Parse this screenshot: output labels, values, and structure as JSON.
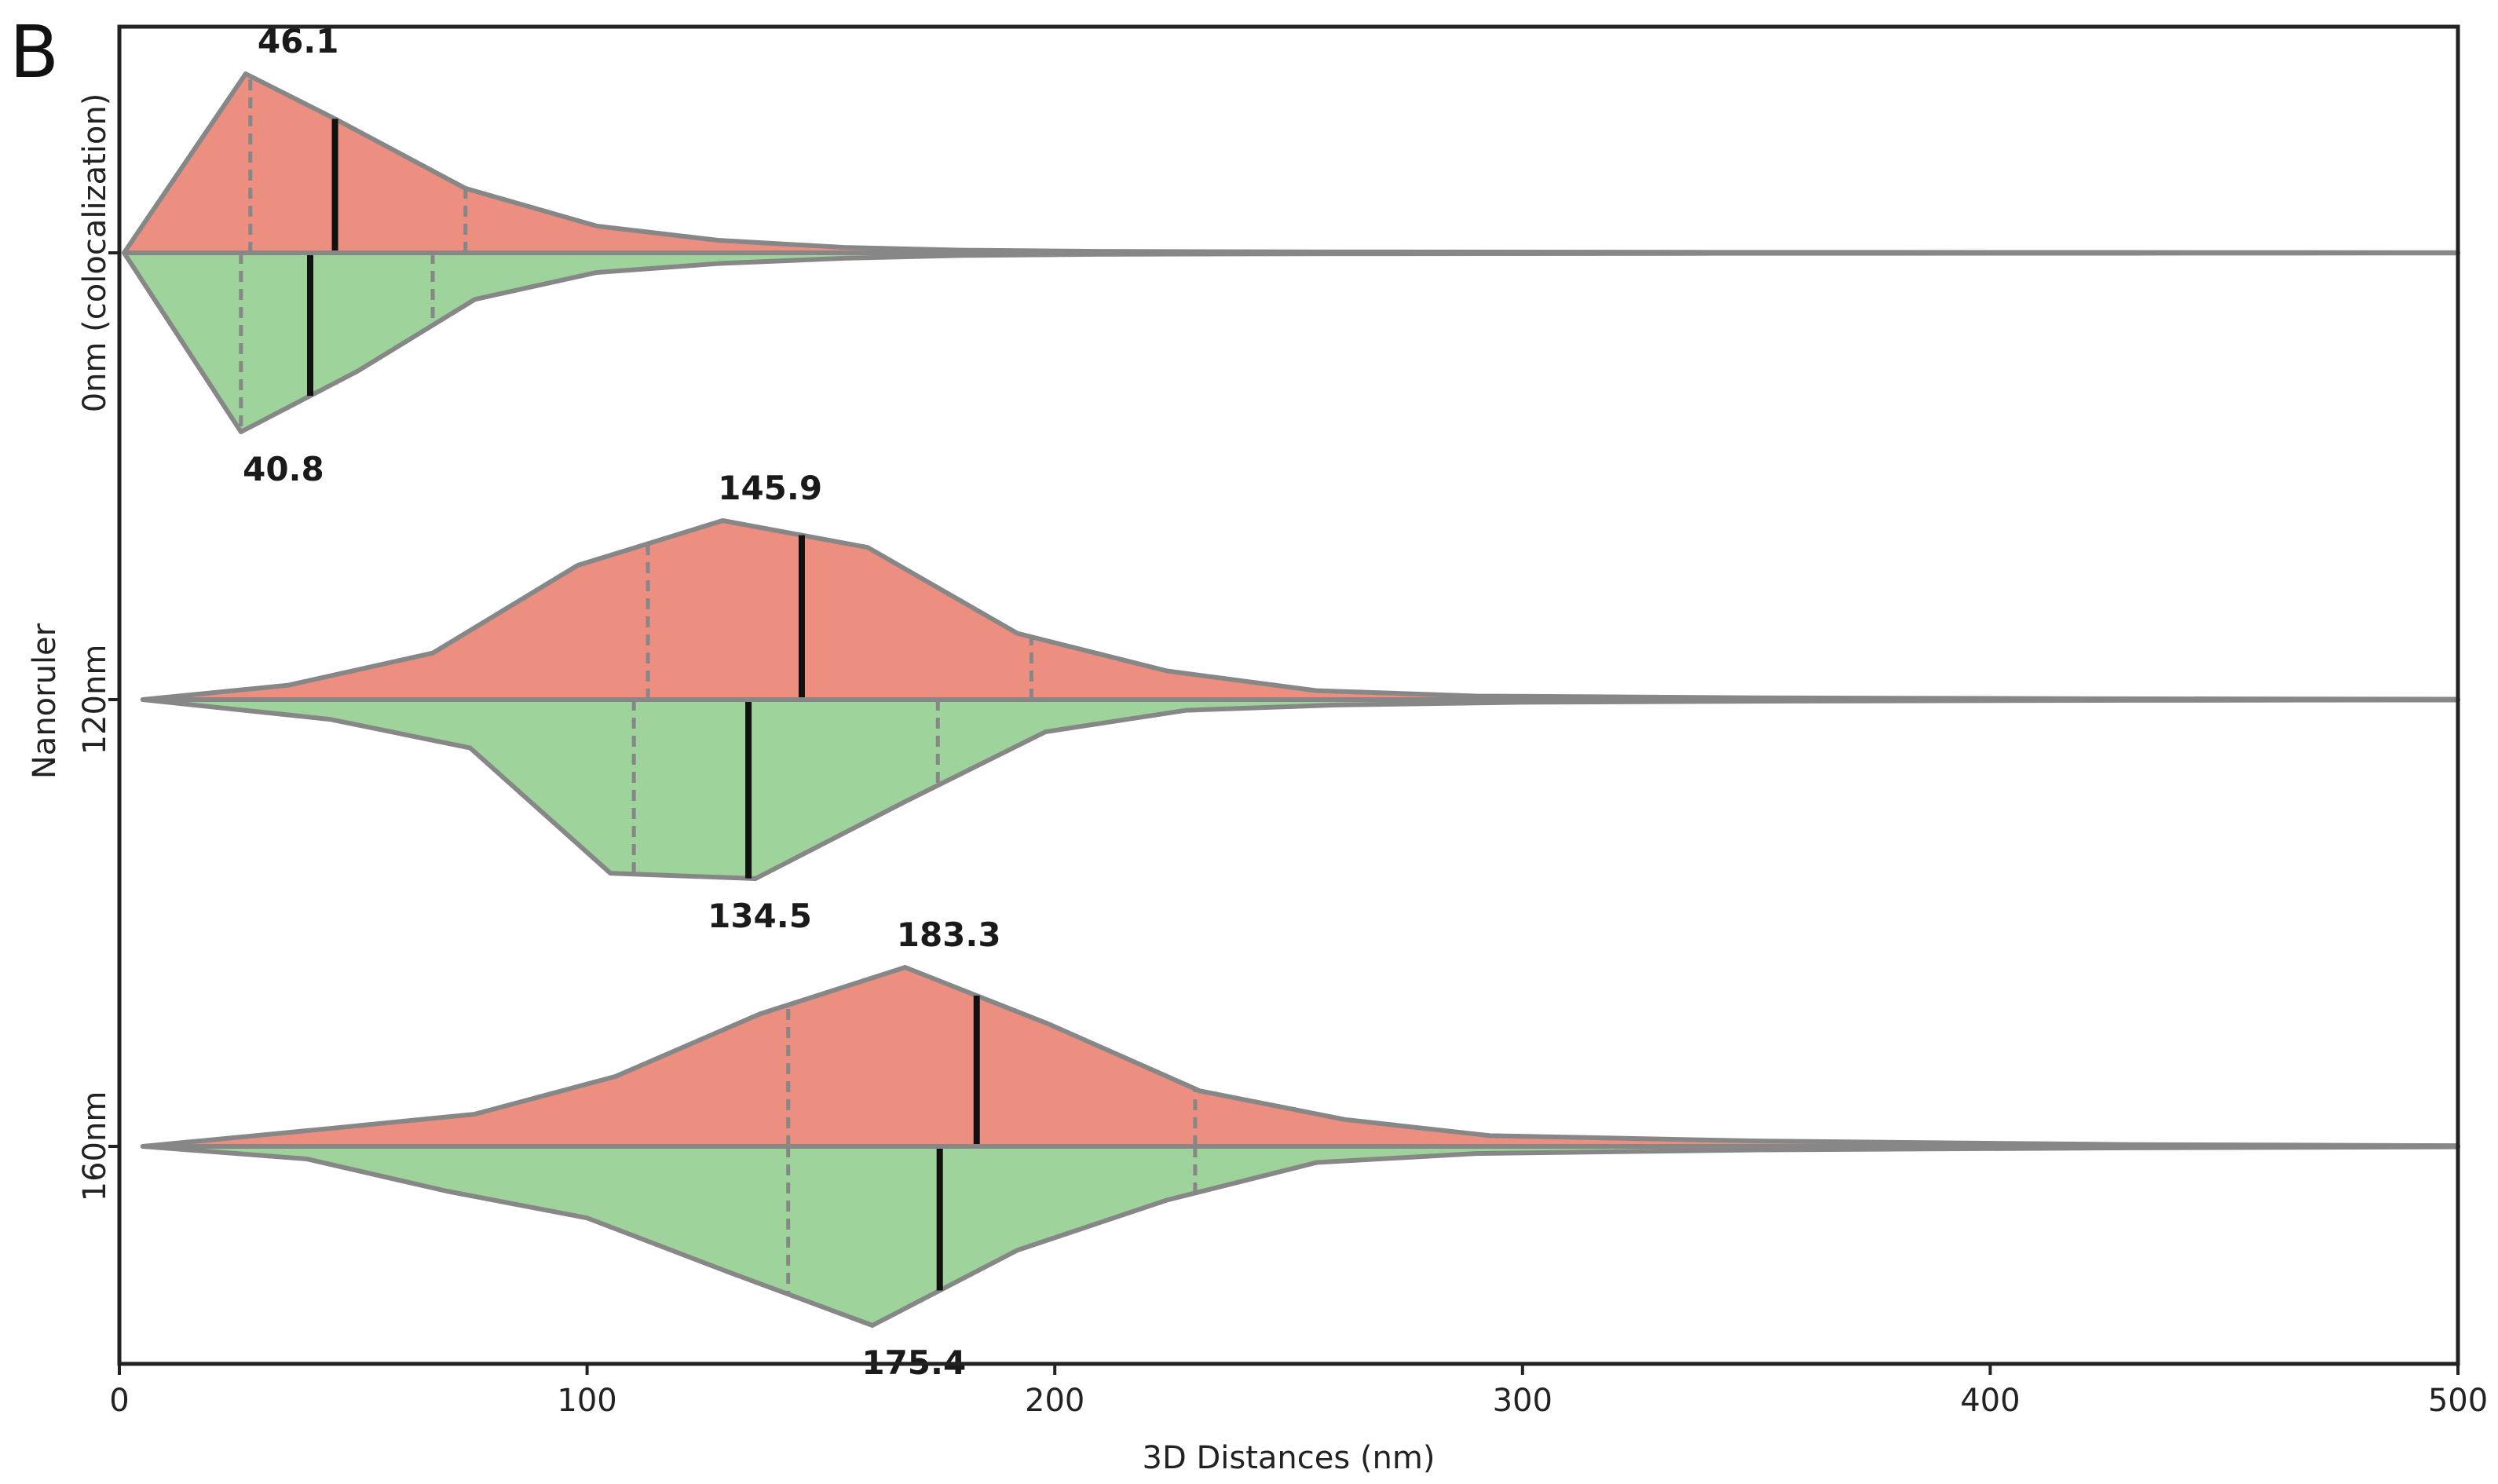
{
  "panel_label": "B",
  "chart_data": {
    "type": "split-violin",
    "xlabel": "3D Distances (nm)",
    "ylabel": "Nanoruler",
    "xlim": [
      0,
      500
    ],
    "xticks": [
      0,
      100,
      200,
      300,
      400,
      500
    ],
    "xtick_labels": [
      "0",
      "100",
      "200",
      "300",
      "400",
      "500"
    ],
    "colors": {
      "upper": "#ec8e80",
      "lower": "#9fd39c",
      "outline": "#878787",
      "median": "#111111",
      "quartile": "#878787"
    },
    "categories": [
      {
        "name": "0nm (colocalization)",
        "upper": {
          "median": 46.1,
          "median_label": "46.1",
          "quartiles": [
            28,
            74
          ],
          "density_x": [
            1,
            27,
            46,
            74,
            102,
            128,
            155,
            180,
            210,
            260,
            340,
            430,
            500
          ],
          "density_y": [
            0,
            1.0,
            0.75,
            0.36,
            0.15,
            0.07,
            0.03,
            0.015,
            0.008,
            0.005,
            0.003,
            0.002,
            0.001
          ]
        },
        "lower": {
          "median": 40.8,
          "median_label": "40.8",
          "quartiles": [
            26,
            67
          ],
          "density_x": [
            1,
            26,
            51,
            76,
            102,
            128,
            155,
            180,
            210,
            260,
            340,
            430,
            500
          ],
          "density_y": [
            0,
            1.0,
            0.66,
            0.26,
            0.11,
            0.06,
            0.03,
            0.015,
            0.008,
            0.005,
            0.003,
            0.002,
            0.001
          ]
        }
      },
      {
        "name": "120nm",
        "upper": {
          "median": 145.9,
          "median_label": "145.9",
          "quartiles": [
            113,
            195
          ],
          "density_x": [
            5,
            36,
            67,
            98,
            129,
            160,
            192,
            224,
            256,
            290,
            350,
            420,
            500
          ],
          "density_y": [
            0,
            0.08,
            0.26,
            0.75,
            1.0,
            0.85,
            0.37,
            0.16,
            0.05,
            0.02,
            0.01,
            0.005,
            0.002
          ]
        },
        "lower": {
          "median": 134.5,
          "median_label": "134.5",
          "quartiles": [
            110,
            175
          ],
          "density_x": [
            5,
            45,
            75,
            105,
            136,
            168,
            198,
            228,
            260,
            300,
            360,
            430,
            500
          ],
          "density_y": [
            0,
            0.11,
            0.27,
            0.97,
            1.0,
            0.57,
            0.18,
            0.06,
            0.03,
            0.015,
            0.008,
            0.004,
            0.002
          ]
        }
      },
      {
        "name": "160nm",
        "upper": {
          "median": 183.3,
          "median_label": "183.3",
          "quartiles": [
            143,
            230
          ],
          "density_x": [
            5,
            45,
            76,
            106,
            137,
            168,
            199,
            231,
            262,
            293,
            350,
            430,
            500
          ],
          "density_y": [
            0,
            0.1,
            0.18,
            0.39,
            0.74,
            1.0,
            0.68,
            0.31,
            0.15,
            0.06,
            0.03,
            0.01,
            0.004
          ]
        },
        "lower": {
          "median": 175.4,
          "median_label": "175.4",
          "quartiles": [
            143,
            230
          ],
          "density_x": [
            5,
            40,
            70,
            100,
            130,
            161,
            192,
            224,
            256,
            290,
            350,
            430,
            500
          ],
          "density_y": [
            0,
            0.07,
            0.25,
            0.4,
            0.7,
            1.0,
            0.58,
            0.3,
            0.09,
            0.04,
            0.02,
            0.008,
            0.003
          ]
        }
      }
    ]
  }
}
